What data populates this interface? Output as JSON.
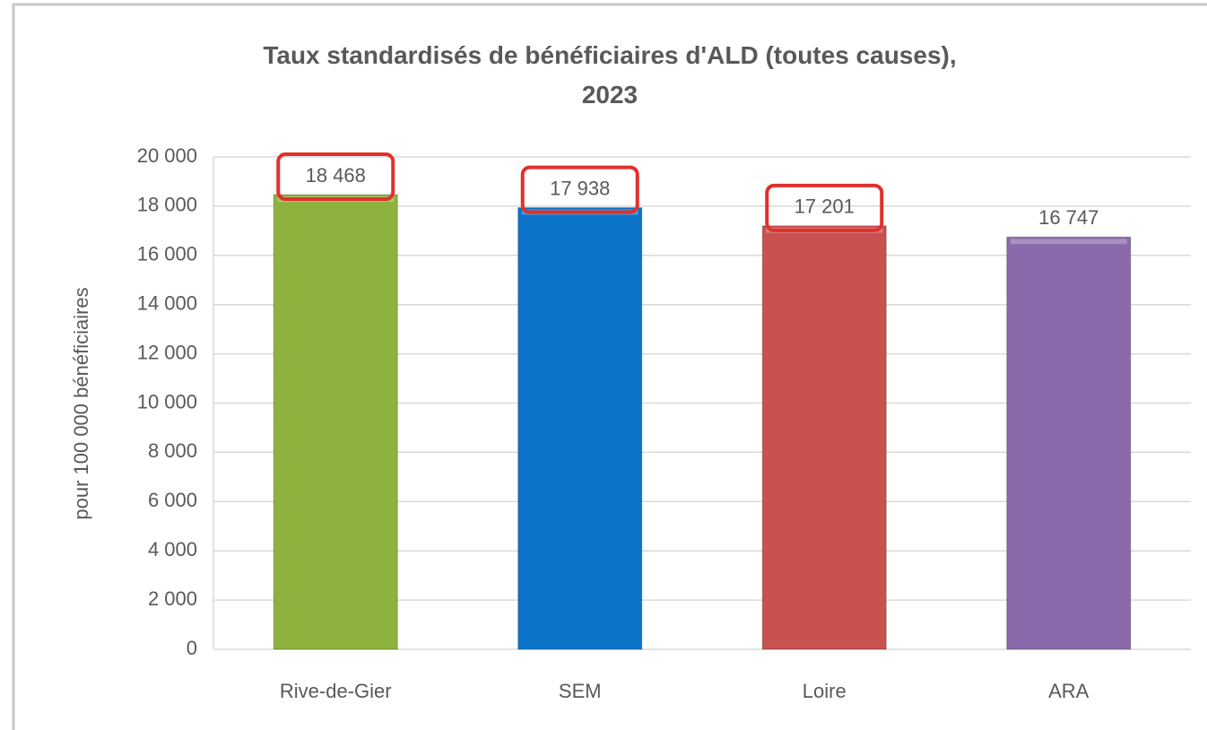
{
  "chart_data": {
    "type": "bar",
    "title": "Taux standardisés de bénéficiaires d'ALD (toutes causes), 2023",
    "ylabel": "pour 100 000 bénéficiaires",
    "categories": [
      "Rive-de-Gier",
      "SEM",
      "Loire",
      "ARA"
    ],
    "values": [
      18468,
      17938,
      17201,
      16747
    ],
    "value_labels": [
      "18 468",
      "17 938",
      "17 201",
      "16 747"
    ],
    "colors": [
      "#8db33e",
      "#0b74c8",
      "#c9514f",
      "#8a6aab"
    ],
    "highlighted": [
      "Rive-de-Gier",
      "SEM",
      "Loire"
    ],
    "highlight_color": "#e0302c",
    "ylim": [
      0,
      20000
    ],
    "yticks": [
      0,
      {
        "value": 2000,
        "label": "2 000"
      },
      {
        "value": 4000,
        "label": "4 000"
      },
      {
        "value": 6000,
        "label": "6 000"
      },
      {
        "value": 8000,
        "label": "8 000"
      },
      {
        "value": 10000,
        "label": "10 000"
      },
      {
        "value": 12000,
        "label": "12 000"
      },
      {
        "value": 14000,
        "label": "14 000"
      },
      {
        "value": 16000,
        "label": "16 000"
      },
      {
        "value": 18000,
        "label": "18 000"
      },
      {
        "value": 20000,
        "label": "20 000"
      }
    ],
    "grid": true
  }
}
